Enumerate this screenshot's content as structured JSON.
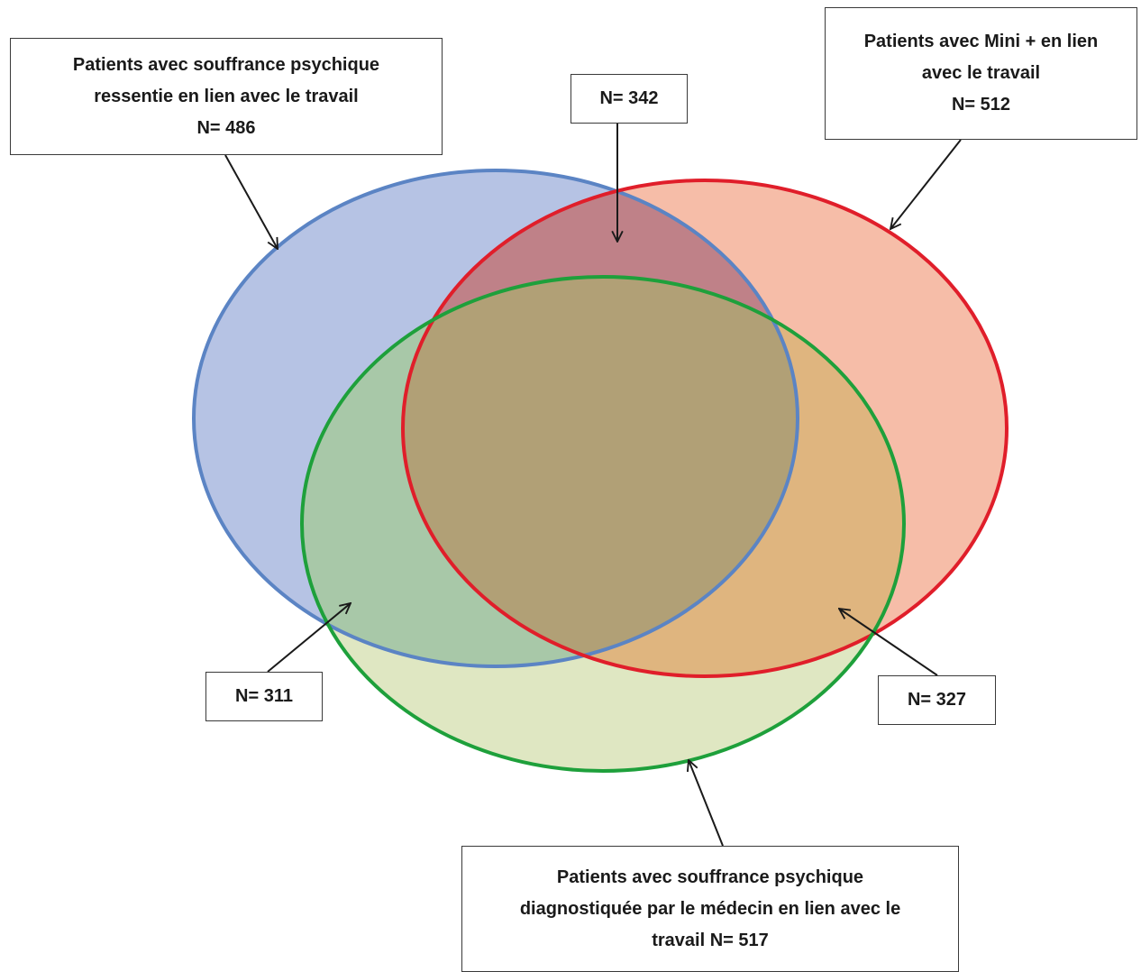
{
  "sets": [
    {
      "name": "ressentie",
      "lines": [
        "Patients avec souffrance psychique",
        "ressentie en lien  avec le travail",
        "N= 486"
      ],
      "fill": "#b6c3e4",
      "stroke": "#5b84c4"
    },
    {
      "name": "mini",
      "lines": [
        "Patients avec Mini + en lien",
        "avec le travail",
        "N= 512"
      ],
      "fill": "#f6bda8",
      "stroke": "#e01e2a"
    },
    {
      "name": "diagnostiquee",
      "lines": [
        "Patients avec souffrance psychique",
        "diagnostiquée par le médecin en lien  avec le",
        "travail N= 517"
      ],
      "fill": "#dfe7c2",
      "stroke": "#1ea03b"
    }
  ],
  "intersections": {
    "ressentie_mini": {
      "label": "N= 342"
    },
    "ressentie_diagnostiquee": {
      "label": "N= 311"
    },
    "mini_diagnostiquee": {
      "label": "N= 327"
    }
  },
  "colors": {
    "overlap_blue_red": "#bf8188",
    "overlap_blue_green": "#a8c8a8",
    "overlap_red_green": "#dfb57f",
    "overlap_all": "#b1a076",
    "arrow": "#1a1a1a",
    "box_border": "#3a3a3a"
  }
}
